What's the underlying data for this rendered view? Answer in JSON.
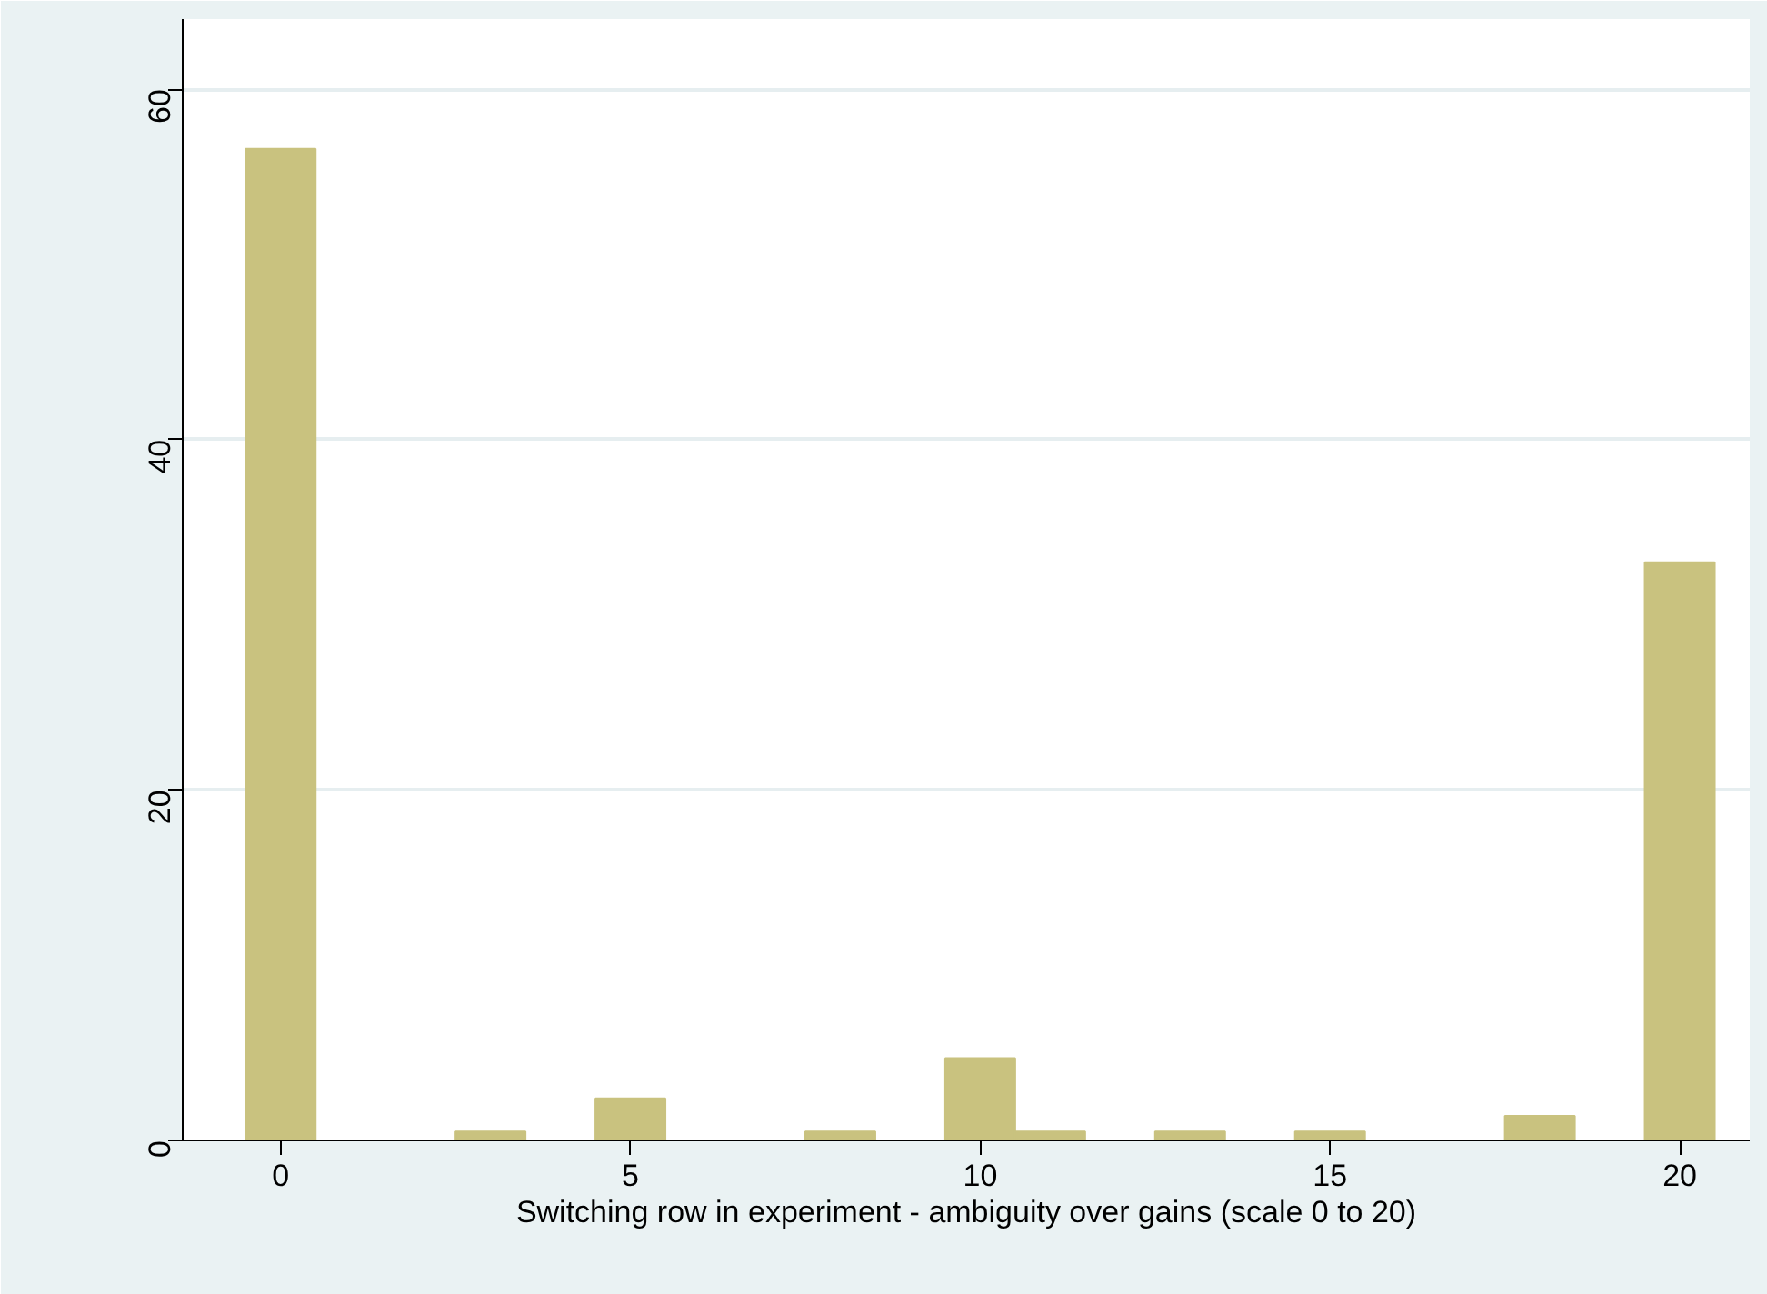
{
  "chart_data": {
    "type": "histogram",
    "xlabel": "Switching row in experiment - ambiguity over gains (scale 0 to 20)",
    "bins": [
      -0.5,
      0.5,
      1.5,
      2.5,
      3.5,
      4.5,
      5.5,
      6.5,
      7.5,
      8.5,
      9.5,
      10.5,
      11.5,
      12.5,
      13.5,
      14.5,
      15.5,
      16.5,
      17.5,
      18.5,
      19.5,
      20.5
    ],
    "values": [
      56.6,
      0,
      0,
      0.5,
      0,
      2.4,
      0,
      0,
      0.5,
      0,
      4.7,
      0.5,
      0,
      0.5,
      0,
      0.5,
      0,
      0,
      1.4,
      0,
      33.0
    ],
    "color": "#c9c27f",
    "xlim": [
      -1.4,
      21
    ],
    "ylim": [
      0,
      64
    ],
    "xticks": [
      0,
      5,
      10,
      15,
      20
    ],
    "yticks": [
      0,
      20,
      40,
      60
    ],
    "grid": "y"
  }
}
